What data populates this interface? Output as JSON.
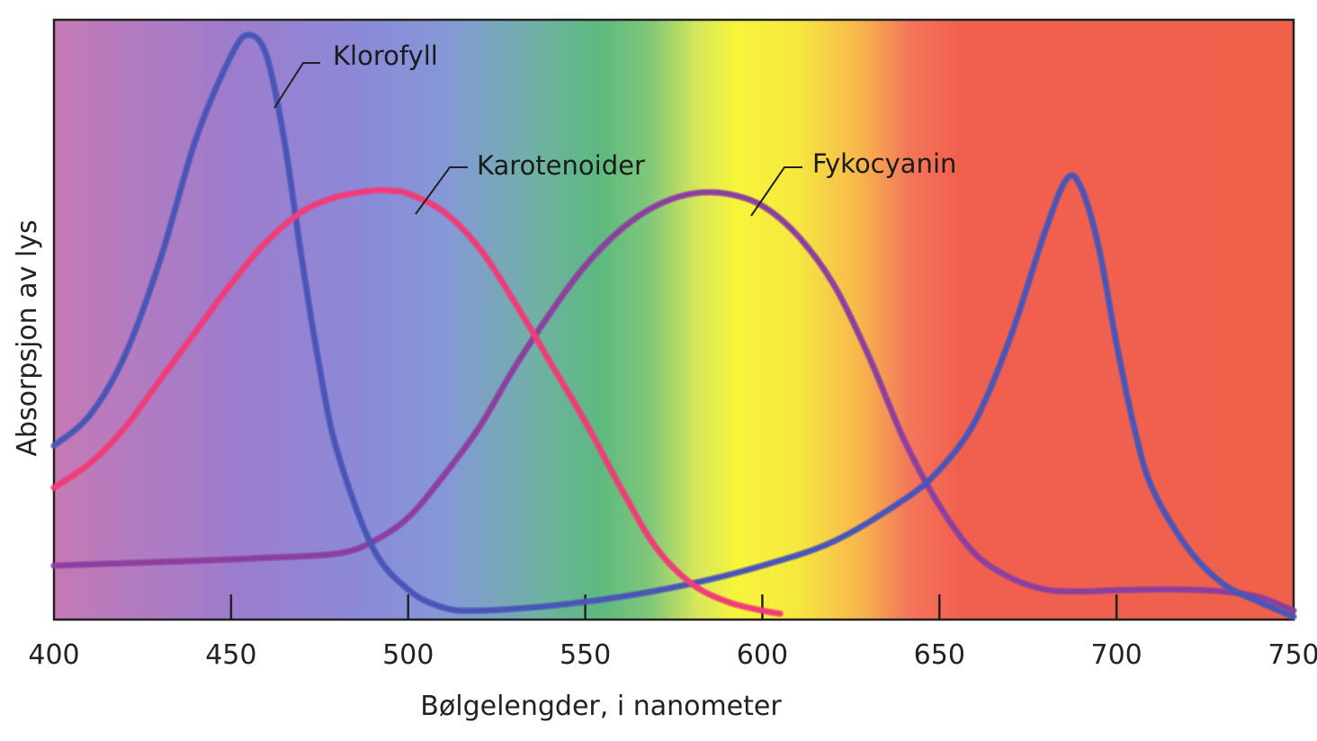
{
  "chart_data": {
    "type": "line",
    "title": "",
    "xlabel": "Bølgelengder, i nanometer",
    "ylabel": "Absorpsjon av lys",
    "xlim": [
      400,
      750
    ],
    "ylim": [
      0,
      100
    ],
    "x_ticks": [
      400,
      450,
      500,
      550,
      600,
      650,
      700,
      750
    ],
    "y_ticks_shown": false,
    "background": "visible light spectrum gradient (violet → blue → green → yellow → orange → red)",
    "series": [
      {
        "name": "Klorofyll",
        "color": "#4a55b8",
        "points": [
          [
            400,
            29
          ],
          [
            410,
            34
          ],
          [
            420,
            44
          ],
          [
            430,
            60
          ],
          [
            440,
            80
          ],
          [
            450,
            94
          ],
          [
            455,
            97.5
          ],
          [
            460,
            94
          ],
          [
            465,
            80
          ],
          [
            470,
            60
          ],
          [
            475,
            42
          ],
          [
            480,
            28
          ],
          [
            490,
            12
          ],
          [
            500,
            5
          ],
          [
            510,
            2
          ],
          [
            520,
            1.5
          ],
          [
            540,
            2.3
          ],
          [
            560,
            3.8
          ],
          [
            580,
            6
          ],
          [
            600,
            9
          ],
          [
            620,
            13
          ],
          [
            640,
            20
          ],
          [
            650,
            25
          ],
          [
            660,
            33
          ],
          [
            670,
            47
          ],
          [
            680,
            65
          ],
          [
            686,
            73.5
          ],
          [
            690,
            72
          ],
          [
            695,
            62
          ],
          [
            700,
            46
          ],
          [
            705,
            32
          ],
          [
            710,
            22
          ],
          [
            720,
            12
          ],
          [
            730,
            6
          ],
          [
            740,
            3
          ],
          [
            750,
            0.5
          ]
        ]
      },
      {
        "name": "Karotenoider",
        "color": "#f03c78",
        "points": [
          [
            400,
            22
          ],
          [
            410,
            26
          ],
          [
            420,
            32
          ],
          [
            430,
            40
          ],
          [
            440,
            48
          ],
          [
            450,
            56
          ],
          [
            460,
            63
          ],
          [
            470,
            68
          ],
          [
            480,
            70.5
          ],
          [
            490,
            71.5
          ],
          [
            495,
            71.5
          ],
          [
            500,
            71
          ],
          [
            510,
            68
          ],
          [
            520,
            62
          ],
          [
            530,
            53
          ],
          [
            540,
            43
          ],
          [
            550,
            33
          ],
          [
            560,
            22
          ],
          [
            570,
            12
          ],
          [
            580,
            6
          ],
          [
            590,
            3
          ],
          [
            600,
            1.5
          ],
          [
            605,
            1
          ]
        ]
      },
      {
        "name": "Fykocyanin",
        "color": "#8c3f9e",
        "points": [
          [
            400,
            9
          ],
          [
            420,
            9.4
          ],
          [
            440,
            9.8
          ],
          [
            460,
            10.3
          ],
          [
            480,
            11
          ],
          [
            490,
            13
          ],
          [
            500,
            17
          ],
          [
            510,
            24
          ],
          [
            520,
            32
          ],
          [
            530,
            42
          ],
          [
            540,
            51
          ],
          [
            550,
            59
          ],
          [
            560,
            65
          ],
          [
            570,
            69
          ],
          [
            580,
            71
          ],
          [
            590,
            71
          ],
          [
            600,
            69
          ],
          [
            610,
            64
          ],
          [
            620,
            56
          ],
          [
            630,
            44
          ],
          [
            640,
            30
          ],
          [
            650,
            19
          ],
          [
            660,
            11
          ],
          [
            670,
            7
          ],
          [
            680,
            5
          ],
          [
            690,
            4.7
          ],
          [
            700,
            4.9
          ],
          [
            710,
            5
          ],
          [
            720,
            5
          ],
          [
            730,
            4.7
          ],
          [
            740,
            3.8
          ],
          [
            750,
            1.5
          ]
        ]
      }
    ],
    "annotations": [
      {
        "text": "Klorofyll",
        "series": "Klorofyll"
      },
      {
        "text": "Karotenoider",
        "series": "Karotenoider"
      },
      {
        "text": "Fykocyanin",
        "series": "Fykocyanin"
      }
    ]
  }
}
